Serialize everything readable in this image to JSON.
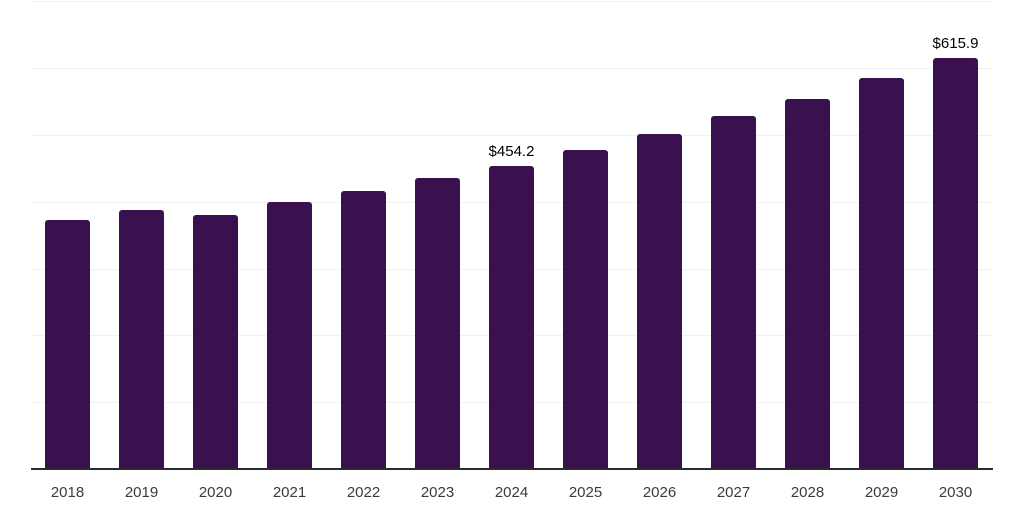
{
  "chart_data": {
    "type": "bar",
    "title": "",
    "xlabel": "",
    "ylabel": "",
    "categories": [
      "2018",
      "2019",
      "2020",
      "2021",
      "2022",
      "2023",
      "2024",
      "2025",
      "2026",
      "2027",
      "2028",
      "2029",
      "2030"
    ],
    "values": [
      372.8,
      387.7,
      380.7,
      400.1,
      415.7,
      435.2,
      454.2,
      478.0,
      501.5,
      528.0,
      553.9,
      584.9,
      615.9
    ],
    "annotations": [
      {
        "category": "2024",
        "text": "$454.2"
      },
      {
        "category": "2030",
        "text": "$615.9"
      }
    ],
    "ylim": [
      0,
      700
    ],
    "grid": true,
    "grid_interval": 100,
    "legend": false,
    "colors": {
      "bar": "#38114E",
      "axis": "#2B2B2B",
      "gridline": "#F0F0F0",
      "tick_label": "#3B3B3B",
      "data_label": "#000000"
    },
    "background": "#FFFFFF"
  }
}
